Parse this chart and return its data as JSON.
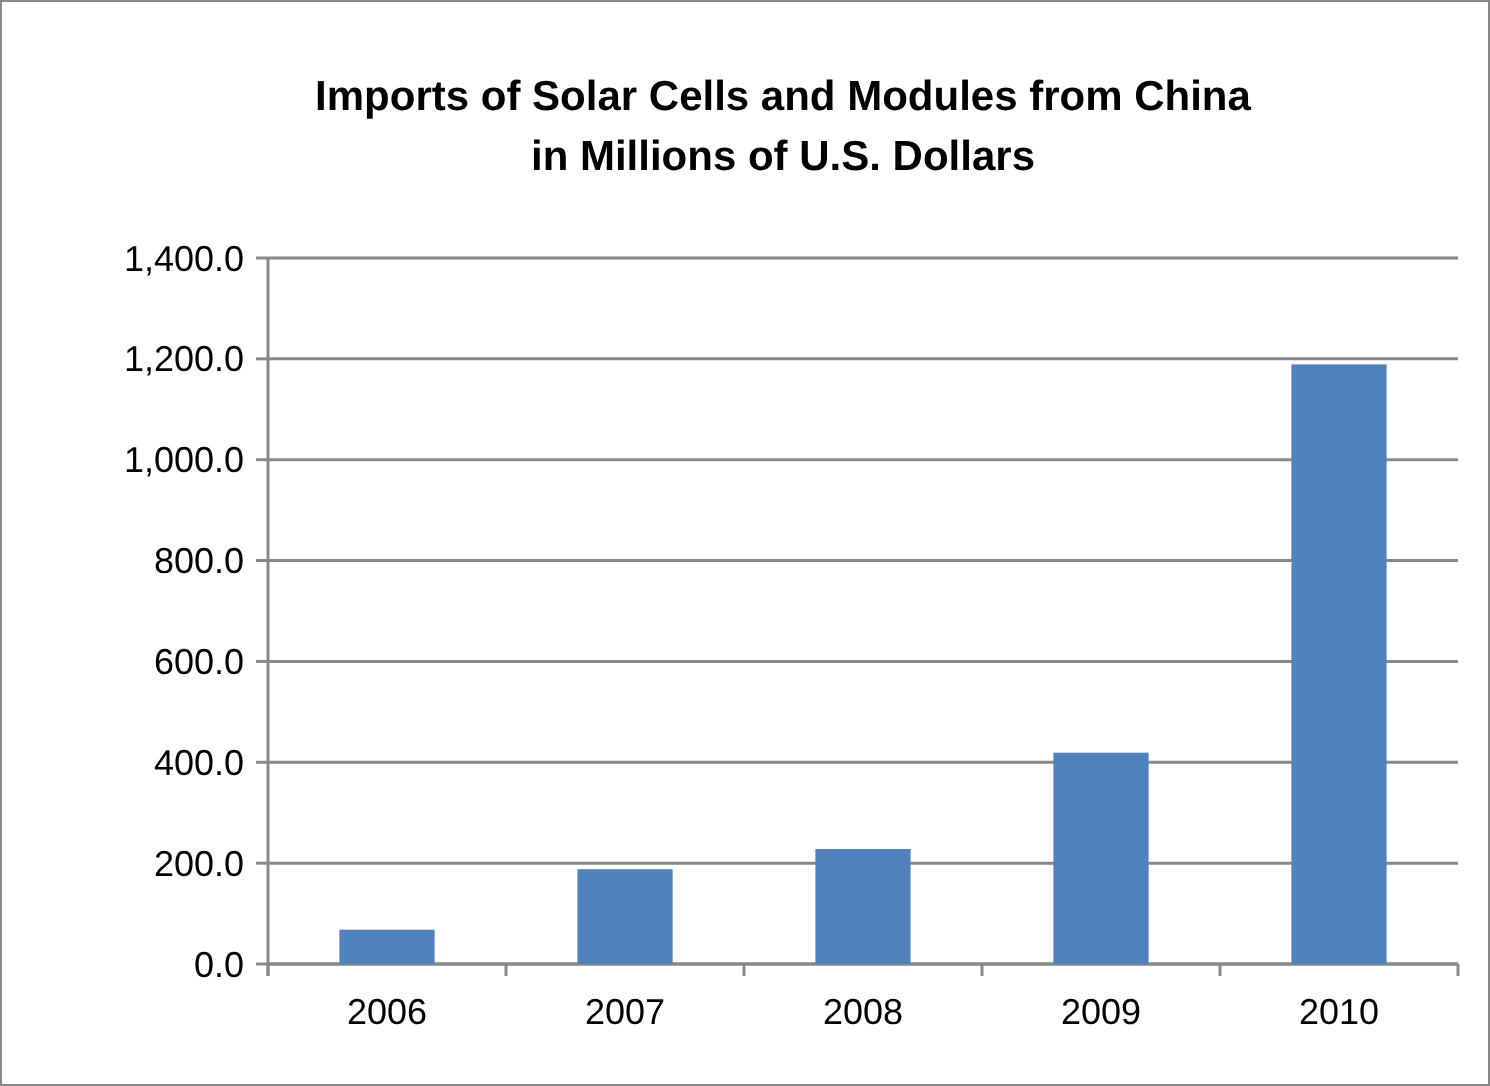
{
  "chart_data": {
    "type": "bar",
    "title": "Imports of Solar Cells and Modules from China\nin Millions of U.S. Dollars",
    "categories": [
      "2006",
      "2007",
      "2008",
      "2009",
      "2010"
    ],
    "values": [
      68,
      188,
      228,
      419,
      1189
    ],
    "color": "#4f81bd",
    "ylim": [
      0,
      1400
    ],
    "yticks": [
      {
        "value": 0,
        "label": "0.0"
      },
      {
        "value": 200,
        "label": "200.0"
      },
      {
        "value": 400,
        "label": "400.0"
      },
      {
        "value": 600,
        "label": "600.0"
      },
      {
        "value": 800,
        "label": "800.0"
      },
      {
        "value": 1000,
        "label": "1,000.0"
      },
      {
        "value": 1200,
        "label": "1,200.0"
      },
      {
        "value": 1400,
        "label": "1,400.0"
      }
    ],
    "grid": "y"
  }
}
